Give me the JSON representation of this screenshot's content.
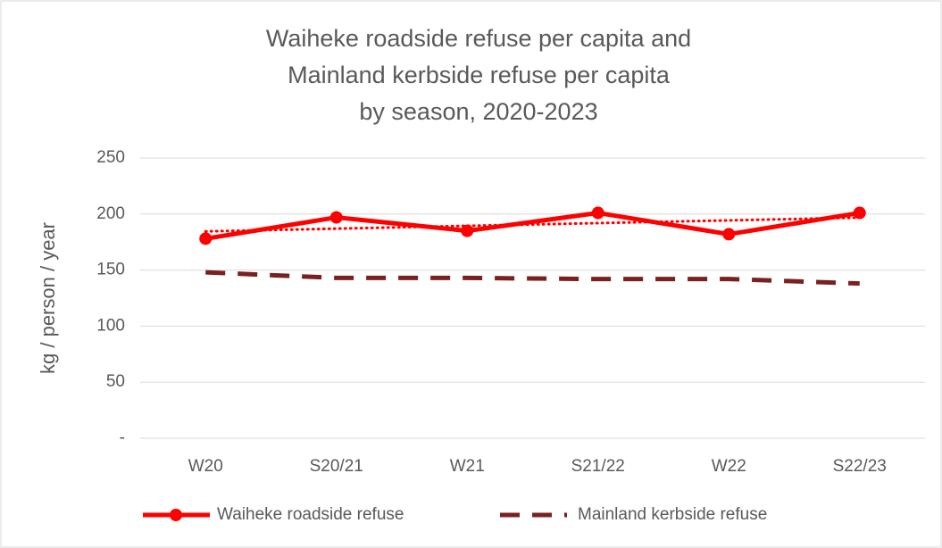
{
  "chart_data": {
    "type": "line",
    "title": [
      "Waiheke roadside refuse per capita and",
      "Mainland kerbside refuse per capita",
      "by season, 2020-2023"
    ],
    "y_label": "kg / person / year",
    "categories": [
      "W20",
      "S20/21",
      "W21",
      "S21/22",
      "W22",
      "S22/23"
    ],
    "series": [
      {
        "name": "Waiheke roadside refuse",
        "color": "#ff0000",
        "style": "solid",
        "marker": true,
        "trendline": true,
        "values": [
          178,
          197,
          185,
          201,
          182,
          201
        ]
      },
      {
        "name": "Mainland kerbside refuse",
        "color": "#7b2020",
        "style": "dashed",
        "marker": false,
        "trendline": false,
        "values": [
          148,
          143,
          143,
          142,
          142,
          138
        ]
      }
    ],
    "ylim": [
      0,
      250
    ],
    "yticks": [
      {
        "value": 0,
        "label": "-"
      },
      50,
      100,
      150,
      200,
      250
    ],
    "grid": true,
    "legend": "bottom"
  }
}
